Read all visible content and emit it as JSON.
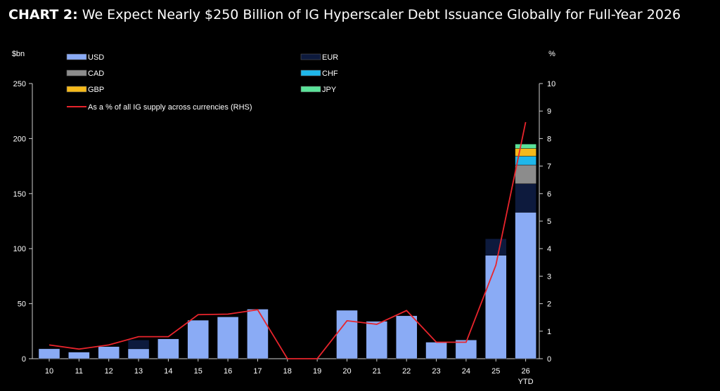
{
  "header": {
    "lead": "CHART 2:",
    "text": "We Expect Nearly $250 Billion of IG Hyperscaler Debt Issuance Globally for Full-Year 2026"
  },
  "chart_data": {
    "type": "bar",
    "stacked": true,
    "categories": [
      "10",
      "11",
      "12",
      "13",
      "14",
      "15",
      "16",
      "17",
      "18",
      "19",
      "20",
      "21",
      "22",
      "23",
      "24",
      "25",
      "26"
    ],
    "category_sublabels": {
      "26": "YTD"
    },
    "left_axis": {
      "unit_label": "$bn",
      "ylim": [
        0,
        250
      ],
      "ticks": [
        0,
        50,
        100,
        150,
        200,
        250
      ]
    },
    "right_axis": {
      "unit_label": "%",
      "ylim": [
        0,
        10
      ],
      "ticks": [
        0,
        1,
        2,
        3,
        4,
        5,
        6,
        7,
        8,
        9,
        10
      ]
    },
    "grid": false,
    "legend_position": "top",
    "series": [
      {
        "name": "USD",
        "color": "#8aabf5",
        "values": [
          9,
          6,
          11,
          9,
          18,
          35,
          38,
          45,
          0,
          0,
          44,
          34,
          39,
          15,
          17,
          94,
          133
        ]
      },
      {
        "name": "EUR",
        "color": "#0d1a3d",
        "values": [
          0,
          0,
          0,
          8,
          0,
          0,
          0,
          0,
          0,
          0,
          0,
          0,
          0,
          0,
          0,
          15,
          26
        ]
      },
      {
        "name": "CAD",
        "color": "#8c8c8c",
        "values": [
          0,
          0,
          0,
          0,
          0,
          0,
          0,
          0,
          0,
          0,
          0,
          0,
          0,
          0,
          0,
          0,
          17
        ]
      },
      {
        "name": "CHF",
        "color": "#1fb7ea",
        "values": [
          0,
          0,
          0,
          0,
          0,
          0,
          0,
          0,
          0,
          0,
          0,
          0,
          0,
          0,
          0,
          0,
          8
        ]
      },
      {
        "name": "GBP",
        "color": "#f5b91a",
        "values": [
          0,
          0,
          0,
          0,
          0,
          0,
          0,
          0,
          0,
          0,
          0,
          0,
          0,
          0,
          0,
          0,
          7
        ]
      },
      {
        "name": "JPY",
        "color": "#5be39a",
        "values": [
          0,
          0,
          0,
          0,
          0,
          0,
          0,
          0,
          0,
          0,
          0,
          0,
          0,
          0,
          0,
          0,
          4
        ]
      }
    ],
    "line_series": {
      "name": "As a % of all IG supply across currencies (RHS)",
      "color": "#e8242c",
      "axis": "right",
      "values": [
        0.5,
        0.35,
        0.5,
        0.8,
        0.8,
        1.6,
        1.62,
        1.78,
        0,
        0,
        1.38,
        1.25,
        1.75,
        0.6,
        0.6,
        3.4,
        8.6
      ]
    }
  }
}
